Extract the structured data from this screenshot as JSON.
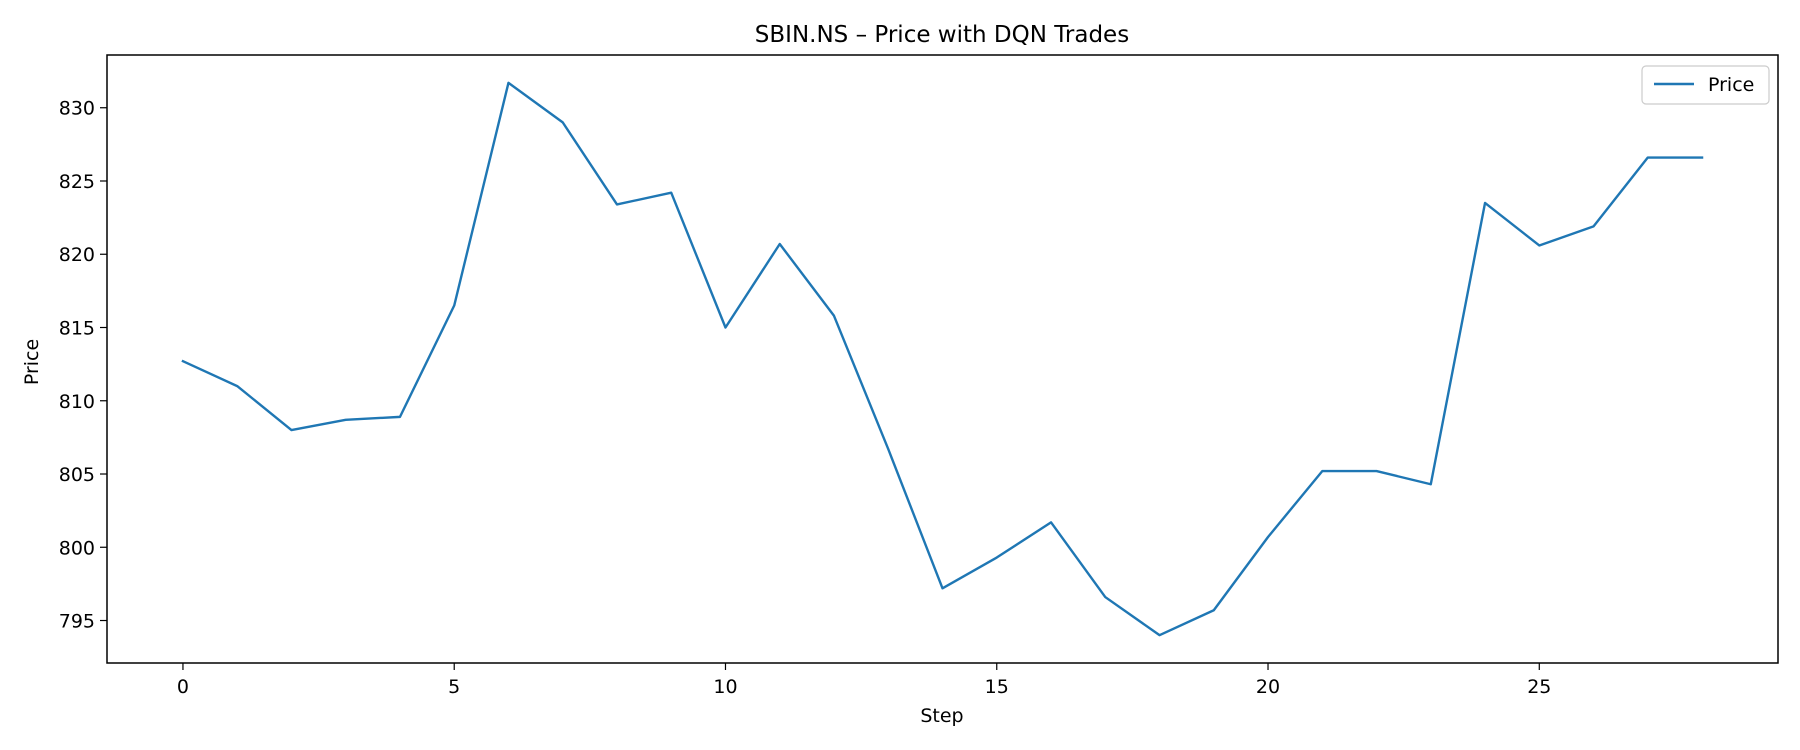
{
  "chart_data": {
    "type": "line",
    "title": "SBIN.NS – Price with DQN Trades",
    "xlabel": "Step",
    "ylabel": "Price",
    "xlim": [
      -1.4,
      29.4
    ],
    "ylim": [
      792.1,
      833.6
    ],
    "xticks": [
      0,
      5,
      10,
      15,
      20,
      25
    ],
    "yticks": [
      795,
      800,
      805,
      810,
      815,
      820,
      825,
      830
    ],
    "grid": false,
    "legend_position": "top-right",
    "line_color": "#1f77b4",
    "series": [
      {
        "name": "Price",
        "x": [
          0,
          1,
          2,
          3,
          4,
          5,
          6,
          7,
          8,
          9,
          10,
          11,
          12,
          13,
          14,
          15,
          16,
          17,
          18,
          19,
          20,
          21,
          22,
          23,
          24,
          25,
          26,
          27,
          28
        ],
        "values": [
          812.7,
          811.0,
          808.0,
          808.7,
          808.9,
          816.5,
          831.7,
          829.0,
          823.4,
          824.2,
          815.0,
          820.7,
          815.8,
          806.7,
          797.2,
          799.3,
          801.7,
          796.6,
          794.0,
          795.7,
          800.7,
          805.2,
          805.2,
          804.3,
          823.5,
          820.6,
          821.9,
          826.6,
          826.6
        ]
      }
    ]
  }
}
